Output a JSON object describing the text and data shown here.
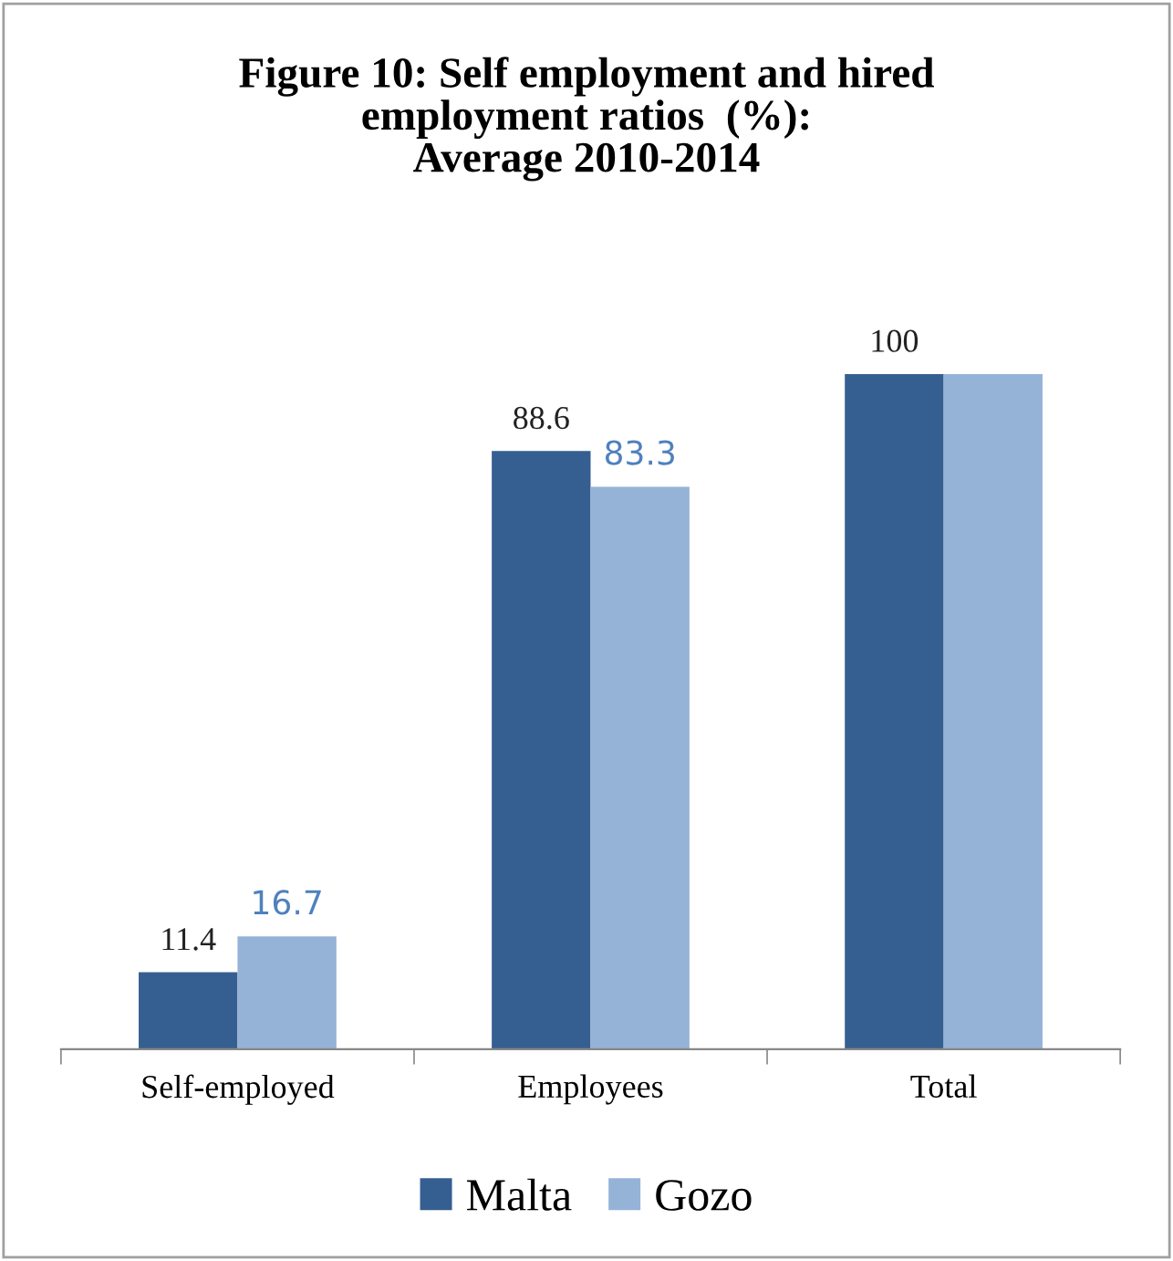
{
  "chart_data": {
    "type": "bar",
    "title": "Figure 10: Self employment and hired\nemployment ratios  (%):\nAverage 2010-2014",
    "categories": [
      "Self-employed",
      "Employees",
      "Total"
    ],
    "series": [
      {
        "name": "Malta",
        "color": "#365f91",
        "values": [
          11.4,
          88.6,
          100
        ],
        "value_labels": [
          "11.4",
          "88.6",
          "100"
        ]
      },
      {
        "name": "Gozo",
        "color": "#95b3d7",
        "values": [
          16.7,
          83.3,
          100
        ],
        "value_labels": [
          "16.7",
          "83.3",
          null
        ]
      }
    ],
    "legend": "bottom",
    "grid": false
  }
}
